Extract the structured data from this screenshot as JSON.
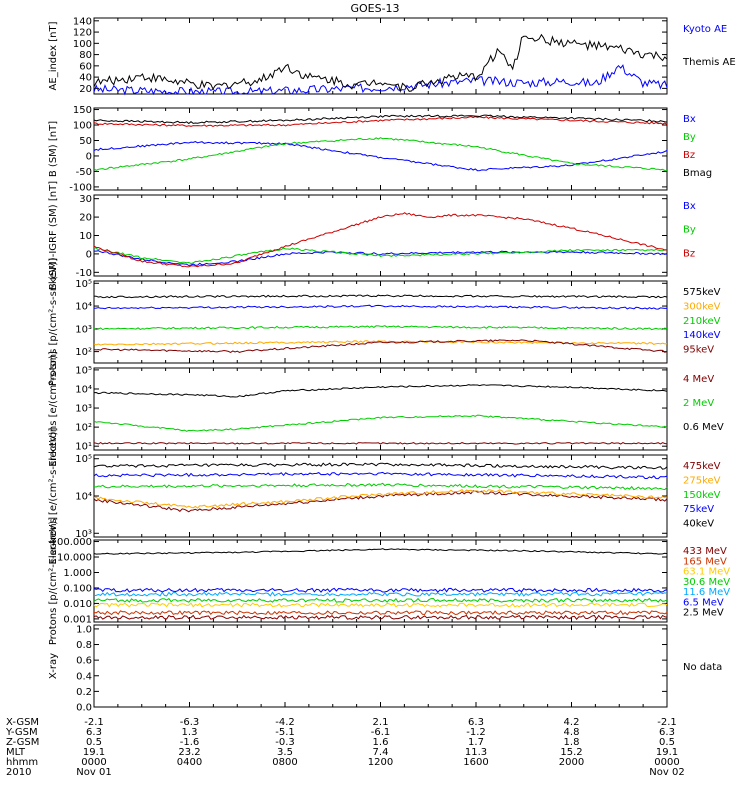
{
  "title": "GOES-13",
  "chart_data": [
    {
      "type": "line",
      "ylabel": "AE_index [nT]",
      "yticks": [
        "140",
        "120",
        "100",
        "80",
        "60",
        "40",
        "20"
      ],
      "ylim": [
        10,
        145
      ],
      "scale": "linear",
      "tick_values": [
        140,
        120,
        100,
        80,
        60,
        40,
        20
      ],
      "series": [
        {
          "name": "Kyoto AE",
          "color": "#0000ff",
          "x": [
            0,
            2,
            4,
            6,
            8,
            10,
            12,
            14,
            16,
            18,
            20,
            21,
            22,
            23,
            24
          ],
          "values": [
            18,
            16,
            14,
            13,
            16,
            19,
            22,
            27,
            34,
            30,
            33,
            28,
            60,
            30,
            25
          ]
        },
        {
          "name": "Themis AE",
          "color": "#000000",
          "x": [
            0,
            1,
            2,
            3,
            4,
            5,
            6,
            7,
            8,
            9,
            10,
            11,
            12,
            13,
            14,
            15,
            16,
            17,
            17.5,
            18,
            19,
            20,
            21,
            22,
            23,
            24
          ],
          "values": [
            30,
            35,
            42,
            35,
            28,
            22,
            30,
            35,
            60,
            40,
            35,
            25,
            35,
            20,
            30,
            40,
            40,
            90,
            50,
            115,
            105,
            100,
            95,
            90,
            80,
            75
          ]
        }
      ]
    },
    {
      "type": "line",
      "ylabel": "B (SM) [nT]",
      "yticks": [
        "150",
        "100",
        "50",
        "0",
        "-50",
        "-100"
      ],
      "ylim": [
        -110,
        155
      ],
      "scale": "linear",
      "tick_values": [
        150,
        100,
        50,
        0,
        -50,
        -100
      ],
      "series": [
        {
          "name": "Bx",
          "color": "#0000ff",
          "x": [
            0,
            4,
            8,
            12,
            16,
            20,
            24
          ],
          "values": [
            20,
            44,
            40,
            -5,
            -45,
            -30,
            15
          ]
        },
        {
          "name": "By",
          "color": "#00cc00",
          "x": [
            0,
            4,
            8,
            12,
            16,
            20,
            24
          ],
          "values": [
            -45,
            -10,
            40,
            58,
            30,
            -25,
            -45
          ]
        },
        {
          "name": "Bz",
          "color": "#cc0000",
          "x": [
            0,
            4,
            8,
            12,
            16,
            20,
            24
          ],
          "values": [
            105,
            98,
            100,
            115,
            125,
            115,
            105
          ]
        },
        {
          "name": "Bmag",
          "color": "#000000",
          "x": [
            0,
            4,
            8,
            12,
            16,
            20,
            24
          ],
          "values": [
            115,
            108,
            115,
            128,
            130,
            122,
            112
          ]
        }
      ]
    },
    {
      "type": "line",
      "ylabel": "B (SM)-IGRF (SM) [nT]",
      "yticks": [
        "30",
        "20",
        "10",
        "0",
        "-10"
      ],
      "ylim": [
        -12,
        32
      ],
      "scale": "linear",
      "tick_values": [
        30,
        20,
        10,
        0,
        -10
      ],
      "series": [
        {
          "name": "Bx",
          "color": "#0000ff",
          "x": [
            0,
            2,
            4,
            6,
            8,
            10,
            12,
            16,
            20,
            24
          ],
          "values": [
            2,
            -3,
            -6,
            -4,
            0,
            1,
            0,
            1,
            1,
            0
          ]
        },
        {
          "name": "By",
          "color": "#00cc00",
          "x": [
            0,
            2,
            4,
            6,
            8,
            10,
            12,
            16,
            20,
            24
          ],
          "values": [
            3,
            -2,
            -5,
            -1,
            3,
            1,
            -1,
            0,
            2,
            2
          ]
        },
        {
          "name": "Bz",
          "color": "#cc0000",
          "x": [
            0,
            2,
            4,
            6,
            7,
            8,
            10,
            12,
            13,
            14,
            15,
            16,
            18,
            20,
            22,
            24
          ],
          "values": [
            4,
            -4,
            -7,
            -5,
            0,
            4,
            12,
            20,
            22,
            20,
            21,
            21,
            19,
            14,
            8,
            2
          ]
        }
      ]
    },
    {
      "type": "line",
      "ylabel": "Protons [p/(cm²-s-sr-keV)]",
      "yticks": [
        "10⁵",
        "10⁴",
        "10³",
        "10²"
      ],
      "ylim": [
        1.5,
        5.1
      ],
      "scale": "log",
      "tick_values": [
        5,
        4,
        3,
        2
      ],
      "series": [
        {
          "name": "575keV",
          "color": "#000000",
          "x": [
            0,
            12,
            24
          ],
          "values": [
            4.4,
            4.45,
            4.4
          ]
        },
        {
          "name": "300keV",
          "color": "#ffaa00",
          "x": [
            0,
            12,
            24
          ],
          "values": [
            2.3,
            2.45,
            2.35
          ]
        },
        {
          "name": "210keV",
          "color": "#00cc00",
          "x": [
            0,
            12,
            24
          ],
          "values": [
            3.0,
            3.1,
            3.0
          ]
        },
        {
          "name": "140keV",
          "color": "#0000ff",
          "x": [
            0,
            12,
            24
          ],
          "values": [
            3.9,
            4.0,
            3.9
          ]
        },
        {
          "name": "95keV",
          "color": "#800000",
          "x": [
            0,
            6,
            12,
            18,
            24
          ],
          "values": [
            2.1,
            2.0,
            2.4,
            2.5,
            2.0
          ]
        }
      ]
    },
    {
      "type": "line",
      "ylabel": "Electrons [e/(cm²-s-sr)]",
      "yticks": [
        "10⁵",
        "10⁴",
        "10³",
        "10²",
        "10¹"
      ],
      "ylim": [
        0.8,
        5.1
      ],
      "scale": "log",
      "tick_values": [
        5,
        4,
        3,
        2,
        1
      ],
      "series": [
        {
          "name": "4 MeV",
          "color": "#800000",
          "x": [
            0,
            12,
            24
          ],
          "values": [
            1.15,
            1.15,
            1.15
          ]
        },
        {
          "name": "2 MeV",
          "color": "#00cc00",
          "x": [
            0,
            4,
            6,
            10,
            12,
            16,
            20,
            24
          ],
          "values": [
            2.3,
            1.8,
            1.9,
            2.3,
            2.5,
            2.6,
            2.3,
            2.0
          ]
        },
        {
          "name": "0.6 MeV",
          "color": "#000000",
          "x": [
            0,
            4,
            6,
            8,
            12,
            16,
            20,
            24
          ],
          "values": [
            3.8,
            3.7,
            3.6,
            3.9,
            4.1,
            4.2,
            4.1,
            3.9
          ]
        }
      ]
    },
    {
      "type": "line",
      "ylabel": "Electrons [e/(cm²-s-sr-keV)]",
      "yticks": [
        "10⁵",
        "10⁴",
        "10³"
      ],
      "ylim": [
        2.9,
        5.1
      ],
      "scale": "log",
      "tick_values": [
        5,
        4,
        3
      ],
      "series": [
        {
          "name": "475keV",
          "color": "#800000",
          "x": [
            0,
            4,
            8,
            12,
            16,
            20,
            24
          ],
          "values": [
            3.9,
            3.6,
            3.8,
            4.0,
            4.1,
            4.0,
            3.9
          ]
        },
        {
          "name": "275keV",
          "color": "#ffaa00",
          "x": [
            0,
            4,
            8,
            12,
            16,
            20,
            24
          ],
          "values": [
            3.95,
            3.7,
            3.85,
            4.05,
            4.15,
            4.05,
            3.95
          ]
        },
        {
          "name": "150keV",
          "color": "#00cc00",
          "x": [
            0,
            12,
            24
          ],
          "values": [
            4.25,
            4.3,
            4.2
          ]
        },
        {
          "name": "75keV",
          "color": "#0000ff",
          "x": [
            0,
            12,
            24
          ],
          "values": [
            4.55,
            4.6,
            4.5
          ]
        },
        {
          "name": "40keV",
          "color": "#000000",
          "x": [
            0,
            12,
            24
          ],
          "values": [
            4.8,
            4.85,
            4.75
          ]
        }
      ]
    },
    {
      "type": "line",
      "ylabel": "Protons [p/(cm²-s-sr-keV)]",
      "yticks": [
        "100.000",
        "10.000",
        "1.000",
        "0.100",
        "0.010",
        "0.001"
      ],
      "ylim": [
        -3.2,
        2.1
      ],
      "scale": "log",
      "tick_values": [
        2,
        1,
        0,
        -1,
        -2,
        -3
      ],
      "series": [
        {
          "name": "433 MeV",
          "color": "#800000",
          "x": [
            0,
            12,
            24
          ],
          "values": [
            -2.9,
            -2.9,
            -2.9
          ]
        },
        {
          "name": "165 MeV",
          "color": "#cc3300",
          "x": [
            0,
            12,
            24
          ],
          "values": [
            -2.6,
            -2.6,
            -2.6
          ]
        },
        {
          "name": "63.1 MeV",
          "color": "#ffcc00",
          "x": [
            0,
            12,
            24
          ],
          "values": [
            -2.1,
            -2.1,
            -2.1
          ]
        },
        {
          "name": "30.6 MeV",
          "color": "#00cc00",
          "x": [
            0,
            12,
            24
          ],
          "values": [
            -1.8,
            -1.8,
            -1.8
          ]
        },
        {
          "name": "11.6 MeV",
          "color": "#00aaff",
          "x": [
            0,
            12,
            24
          ],
          "values": [
            -1.4,
            -1.4,
            -1.4
          ]
        },
        {
          "name": "6.5 MeV",
          "color": "#0000ff",
          "x": [
            0,
            12,
            24
          ],
          "values": [
            -1.15,
            -1.15,
            -1.15
          ]
        },
        {
          "name": "2.5 MeV",
          "color": "#000000",
          "x": [
            0,
            6,
            12,
            18,
            24
          ],
          "values": [
            1.2,
            1.3,
            1.5,
            1.4,
            1.2
          ]
        }
      ]
    },
    {
      "type": "line",
      "ylabel": "X-ray",
      "yticks": [
        "1.0",
        "0.8",
        "0.6",
        "0.4",
        "0.2",
        "0.0"
      ],
      "ylim": [
        0,
        1.05
      ],
      "scale": "linear",
      "tick_values": [
        1.0,
        0.8,
        0.6,
        0.4,
        0.2,
        0.0
      ],
      "series": [],
      "note": "No data"
    }
  ],
  "footer": {
    "labels": [
      "X-GSM",
      "Y-GSM",
      "Z-GSM",
      "MLT",
      "hhmm",
      "2010"
    ],
    "columns": [
      [
        "-2.1",
        "6.3",
        "0.5",
        "19.1",
        "0000",
        "Nov 01"
      ],
      [
        "-6.3",
        "1.3",
        "-1.6",
        "23.2",
        "0400",
        ""
      ],
      [
        "-4.2",
        "-5.1",
        "-0.3",
        "3.5",
        "0800",
        ""
      ],
      [
        "2.1",
        "-6.1",
        "1.6",
        "7.4",
        "1200",
        ""
      ],
      [
        "6.3",
        "-1.2",
        "1.7",
        "11.3",
        "1600",
        ""
      ],
      [
        "4.2",
        "4.8",
        "1.8",
        "15.2",
        "2000",
        ""
      ],
      [
        "-2.1",
        "6.3",
        "0.5",
        "19.1",
        "0000",
        "Nov 02"
      ]
    ]
  }
}
